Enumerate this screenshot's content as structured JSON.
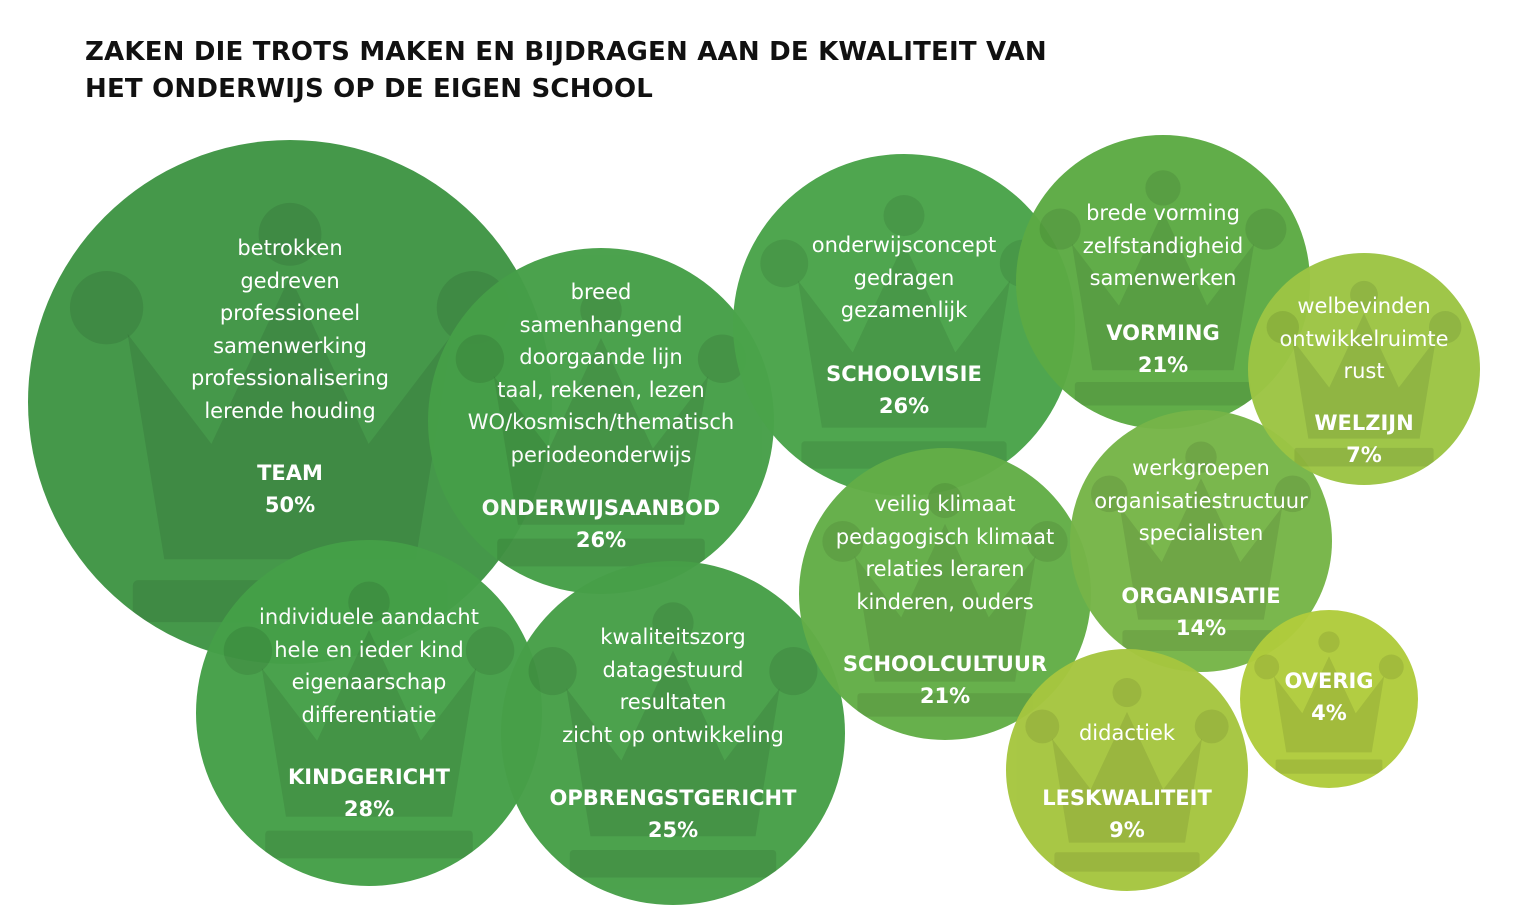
{
  "title": {
    "line1": "ZAKEN DIE TROTS MAKEN EN BIJDRAGEN AAN DE KWALITEIT VAN",
    "line2": "HET ONDERWIJS OP DE EIGEN SCHOOL"
  },
  "colors": {
    "team": "#3f9545",
    "onderwijsaanbod": "#469f48",
    "kindgericht": "#45a048",
    "opbrengstgericht": "#479f48",
    "schoolvisie": "#4aa44a",
    "vorming": "#5cab44",
    "schoolcultuur": "#63ae47",
    "organisatie": "#76b548",
    "welzijn": "#9cc544",
    "leskwaliteit": "#a6c63f",
    "overig": "#b0cc3c",
    "crown_overlay": "rgba(0,0,0,0.09)"
  },
  "bubbles": {
    "team": {
      "items": [
        "betrokken",
        "gedreven",
        "professioneel",
        "samenwerking",
        "professionalisering",
        "lerende houding"
      ],
      "category": "TEAM",
      "percent": "50%"
    },
    "onderwijsaanbod": {
      "items": [
        "breed",
        "samenhangend",
        "doorgaande lijn",
        "taal, rekenen, lezen",
        "WO/kosmisch/thematisch",
        "periodeonderwijs"
      ],
      "category": "ONDERWIJSAANBOD",
      "percent": "26%"
    },
    "kindgericht": {
      "items": [
        "individuele aandacht",
        "hele en ieder kind",
        "eigenaarschap",
        "differentiatie"
      ],
      "category": "KINDGERICHT",
      "percent": "28%"
    },
    "opbrengstgericht": {
      "items": [
        "kwaliteitszorg",
        "datagestuurd",
        "resultaten",
        "zicht op ontwikkeling"
      ],
      "category": "OPBRENGSTGERICHT",
      "percent": "25%"
    },
    "schoolvisie": {
      "items": [
        "onderwijsconcept",
        "gedragen",
        "gezamenlijk"
      ],
      "category": "SCHOOLVISIE",
      "percent": "26%"
    },
    "vorming": {
      "items": [
        "brede vorming",
        "zelfstandigheid",
        "samenwerken"
      ],
      "category": "VORMING",
      "percent": "21%"
    },
    "schoolcultuur": {
      "items": [
        "veilig klimaat",
        "pedagogisch klimaat",
        "relaties leraren",
        "kinderen, ouders"
      ],
      "category": "SCHOOLCULTUUR",
      "percent": "21%"
    },
    "organisatie": {
      "items": [
        "werkgroepen",
        "organisatiestructuur",
        "specialisten"
      ],
      "category": "ORGANISATIE",
      "percent": "14%"
    },
    "welzijn": {
      "items": [
        "welbevinden",
        "ontwikkelruimte",
        "rust"
      ],
      "category": "WELZIJN",
      "percent": "7%"
    },
    "leskwaliteit": {
      "items": [
        "didactiek"
      ],
      "category": "LESKWALITEIT",
      "percent": "9%"
    },
    "overig": {
      "items": [],
      "category": "OVERIG",
      "percent": "4%"
    }
  },
  "icons": {
    "crown": "crown-icon"
  }
}
